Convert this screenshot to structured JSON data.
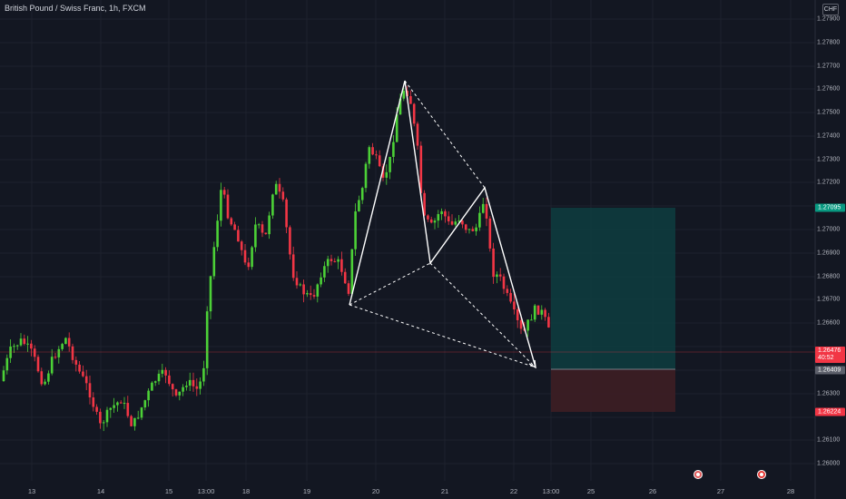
{
  "header": {
    "title": "British Pound / Swiss Franc, 1h, FXCM",
    "currency": "CHF"
  },
  "price_axis": {
    "labels": [
      "1.27900",
      "1.27800",
      "1.27700",
      "1.27600",
      "1.27500",
      "1.27400",
      "1.27300",
      "1.27200",
      "1.27000",
      "1.26900",
      "1.26800",
      "1.26700",
      "1.26600",
      "1.26300",
      "1.26100",
      "1.26000"
    ]
  },
  "time_axis": {
    "labels": [
      "13",
      "14",
      "15",
      "13:00",
      "18",
      "19",
      "20",
      "21",
      "22",
      "13:00",
      "25",
      "26",
      "27",
      "28"
    ]
  },
  "price_tags": {
    "target": {
      "value": "1.27095",
      "color": "#089981"
    },
    "current": {
      "value": "1.26476",
      "countdown": "40:52",
      "color": "#f23645"
    },
    "entry": {
      "value": "1.26409",
      "color": "#5d606b"
    },
    "stop": {
      "value": "1.26224",
      "color": "#f23645"
    }
  },
  "colors": {
    "up": "#4cd137",
    "down": "#f23645",
    "pattern": "#ffffff",
    "profit_zone": "#0e3b3e",
    "loss_zone": "#3b1e24"
  },
  "events": [
    {
      "name": "event-marker-1"
    },
    {
      "name": "event-marker-2"
    }
  ]
}
